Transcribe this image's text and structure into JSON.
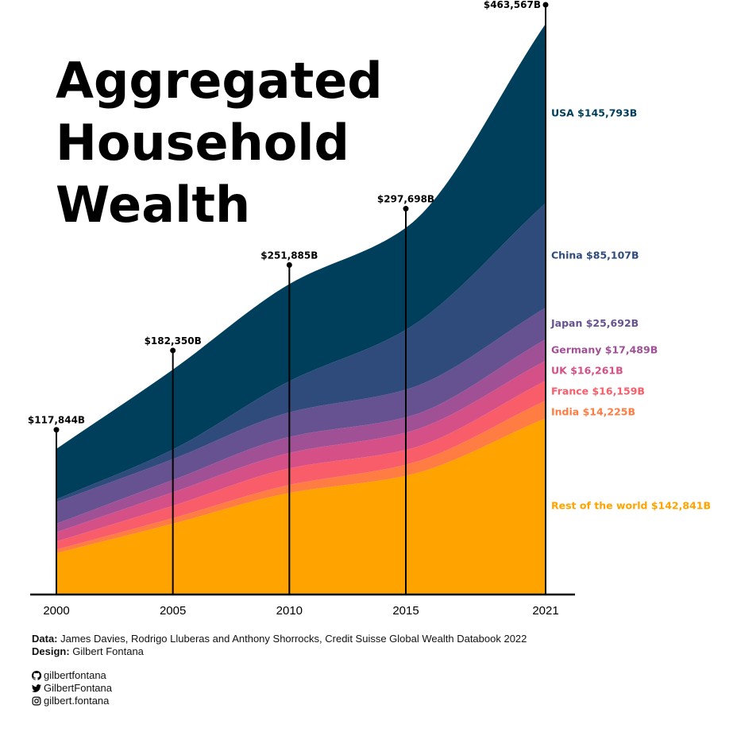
{
  "chart_data": {
    "type": "area",
    "title": "Aggregated Household Wealth",
    "x": [
      2000,
      2005,
      2010,
      2015,
      2021
    ],
    "xticks": [
      "2000",
      "2005",
      "2010",
      "2015",
      "2021"
    ],
    "totals": [
      117844,
      182350,
      251885,
      297698,
      463567
    ],
    "total_labels": [
      "$117,844B",
      "$182,350B",
      "$251,885B",
      "$297,698B",
      "$463,567B"
    ],
    "series": [
      {
        "name": "Rest of the world",
        "label": "Rest of the world $142,841B",
        "color": "#ffa300",
        "values": [
          33000,
          57000,
          82000,
          96000,
          142841
        ]
      },
      {
        "name": "India",
        "label": "India $14,225B",
        "color": "#ff7c43",
        "values": [
          3000,
          4500,
          6500,
          9000,
          14225
        ]
      },
      {
        "name": "France",
        "label": "France $16,159B",
        "color": "#f95d6a",
        "values": [
          6500,
          10000,
          13500,
          12000,
          16159
        ]
      },
      {
        "name": "UK",
        "label": "UK $16,261B",
        "color": "#d45087",
        "values": [
          7500,
          11000,
          12500,
          14000,
          16261
        ]
      },
      {
        "name": "Germany",
        "label": "Germany $17,489B",
        "color": "#a05195",
        "values": [
          7000,
          10000,
          13000,
          12500,
          17489
        ]
      },
      {
        "name": "Japan",
        "label": "Japan $25,692B",
        "color": "#665191",
        "values": [
          17500,
          17000,
          20000,
          22500,
          25692
        ]
      },
      {
        "name": "China",
        "label": "China $85,107B",
        "color": "#2f4b7c",
        "values": [
          2344,
          7850,
          25385,
          48698,
          85107
        ]
      },
      {
        "name": "USA",
        "label": "USA $145,793B",
        "color": "#003f5c",
        "values": [
          41000,
          65000,
          79000,
          83000,
          145793
        ]
      }
    ],
    "ylim": [
      0,
      470000
    ],
    "grid": false,
    "legend": "right, labels at end of each series"
  },
  "title_lines": [
    "Aggregated",
    "Household",
    "Wealth"
  ],
  "footer": {
    "data_label": "Data:",
    "data_text": "James Davies, Rodrigo Lluberas and Anthony Shorrocks, Credit Suisse Global Wealth Databook 2022",
    "design_label": "Design:",
    "design_text": "Gilbert Fontana",
    "github": "gilbertfontana",
    "twitter": "GilbertFontana",
    "instagram": "gilbert.fontana"
  },
  "icons": [
    "github-icon",
    "twitter-icon",
    "instagram-icon"
  ]
}
